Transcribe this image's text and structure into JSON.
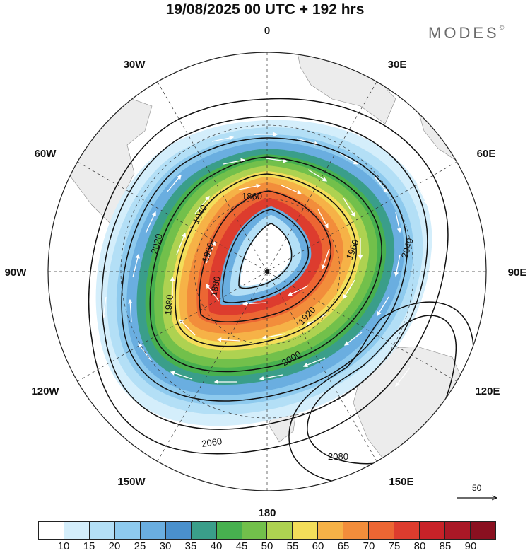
{
  "title": "19/08/2025  00 UTC  + 192 hrs",
  "brand": "MODES",
  "brand_mark": "©",
  "longitude_labels": [
    "0",
    "30E",
    "60E",
    "90E",
    "120E",
    "150E",
    "180",
    "150W",
    "120W",
    "90W",
    "60W",
    "30W"
  ],
  "contour_labels": [
    "1860",
    "1880",
    "1900",
    "1920",
    "1940",
    "1960",
    "1980",
    "2000",
    "2020",
    "2040",
    "2060",
    "2080"
  ],
  "vector_reference": "50",
  "colorbar": {
    "colors": [
      "#ffffff",
      "#d4eefb",
      "#b3dff6",
      "#8ecaee",
      "#6aaee0",
      "#4a90cc",
      "#3a9e8a",
      "#47b04f",
      "#72c04b",
      "#aed251",
      "#f4de5a",
      "#f6b247",
      "#f28d3b",
      "#ec6633",
      "#dd3c2e",
      "#c82228",
      "#aa1826",
      "#8a1020"
    ],
    "ticks": [
      "10",
      "15",
      "20",
      "25",
      "30",
      "35",
      "40",
      "45",
      "50",
      "55",
      "60",
      "65",
      "70",
      "75",
      "80",
      "85",
      "90"
    ]
  }
}
